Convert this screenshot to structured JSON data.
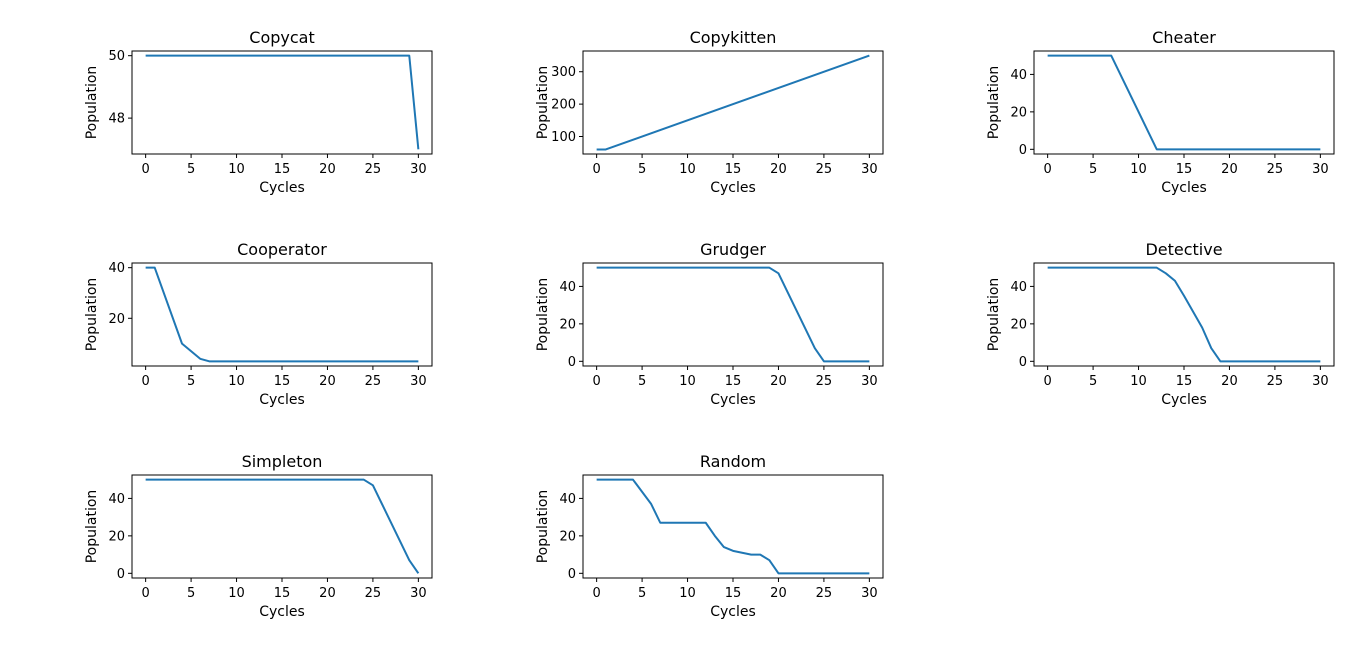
{
  "chart_data": [
    {
      "type": "line",
      "title": "Copycat",
      "xlabel": "Cycles",
      "ylabel": "Population",
      "xlim": [
        -1.5,
        31.5
      ],
      "ylim": [
        46.85,
        50.15
      ],
      "xticks": [
        0,
        5,
        10,
        15,
        20,
        25,
        30
      ],
      "yticks": [
        48,
        50
      ],
      "series": [
        {
          "x": [
            0,
            29,
            30
          ],
          "y": [
            50,
            50,
            47
          ]
        }
      ]
    },
    {
      "type": "line",
      "title": "Copykitten",
      "xlabel": "Cycles",
      "ylabel": "Population",
      "xlim": [
        -1.5,
        31.5
      ],
      "ylim": [
        46,
        364
      ],
      "xticks": [
        0,
        5,
        10,
        15,
        20,
        25,
        30
      ],
      "yticks": [
        100,
        200,
        300
      ],
      "series": [
        {
          "x": [
            0,
            1,
            30
          ],
          "y": [
            60,
            60,
            350
          ]
        }
      ]
    },
    {
      "type": "line",
      "title": "Cheater",
      "xlabel": "Cycles",
      "ylabel": "Population",
      "xlim": [
        -1.5,
        31.5
      ],
      "ylim": [
        -2.5,
        52.5
      ],
      "xticks": [
        0,
        5,
        10,
        15,
        20,
        25,
        30
      ],
      "yticks": [
        0,
        20,
        40
      ],
      "series": [
        {
          "x": [
            0,
            7,
            12,
            30
          ],
          "y": [
            50,
            50,
            0,
            0
          ]
        }
      ]
    },
    {
      "type": "line",
      "title": "Cooperator",
      "xlabel": "Cycles",
      "ylabel": "Population",
      "xlim": [
        -1.5,
        31.5
      ],
      "ylim": [
        1.15,
        41.85
      ],
      "xticks": [
        0,
        5,
        10,
        15,
        20,
        25,
        30
      ],
      "yticks": [
        20,
        40
      ],
      "series": [
        {
          "x": [
            0,
            1,
            4,
            6,
            7,
            30
          ],
          "y": [
            40,
            40,
            10,
            4,
            3,
            3
          ]
        }
      ]
    },
    {
      "type": "line",
      "title": "Grudger",
      "xlabel": "Cycles",
      "ylabel": "Population",
      "xlim": [
        -1.5,
        31.5
      ],
      "ylim": [
        -2.5,
        52.5
      ],
      "xticks": [
        0,
        5,
        10,
        15,
        20,
        25,
        30
      ],
      "yticks": [
        0,
        20,
        40
      ],
      "series": [
        {
          "x": [
            0,
            19,
            20,
            24,
            25,
            30
          ],
          "y": [
            50,
            50,
            47,
            7,
            0,
            0
          ]
        }
      ]
    },
    {
      "type": "line",
      "title": "Detective",
      "xlabel": "Cycles",
      "ylabel": "Population",
      "xlim": [
        -1.5,
        31.5
      ],
      "ylim": [
        -2.5,
        52.5
      ],
      "xticks": [
        0,
        5,
        10,
        15,
        20,
        25,
        30
      ],
      "yticks": [
        0,
        20,
        40
      ],
      "series": [
        {
          "x": [
            0,
            12,
            13,
            14,
            15,
            17,
            18,
            19,
            30
          ],
          "y": [
            50,
            50,
            47,
            43,
            35,
            18,
            7,
            0,
            0
          ]
        }
      ]
    },
    {
      "type": "line",
      "title": "Simpleton",
      "xlabel": "Cycles",
      "ylabel": "Population",
      "xlim": [
        -1.5,
        31.5
      ],
      "ylim": [
        -2.5,
        52.5
      ],
      "xticks": [
        0,
        5,
        10,
        15,
        20,
        25,
        30
      ],
      "yticks": [
        0,
        20,
        40
      ],
      "series": [
        {
          "x": [
            0,
            24,
            25,
            29,
            30
          ],
          "y": [
            50,
            50,
            47,
            7,
            0
          ]
        }
      ]
    },
    {
      "type": "line",
      "title": "Random",
      "xlabel": "Cycles",
      "ylabel": "Population",
      "xlim": [
        -1.5,
        31.5
      ],
      "ylim": [
        -2.5,
        52.5
      ],
      "xticks": [
        0,
        5,
        10,
        15,
        20,
        25,
        30
      ],
      "yticks": [
        0,
        20,
        40
      ],
      "series": [
        {
          "x": [
            0,
            4,
            6,
            7,
            12,
            13,
            14,
            15,
            16,
            17,
            18,
            19,
            20,
            30
          ],
          "y": [
            50,
            50,
            37,
            27,
            27,
            20,
            14,
            12,
            11,
            10,
            10,
            7,
            0,
            0
          ]
        }
      ]
    }
  ]
}
